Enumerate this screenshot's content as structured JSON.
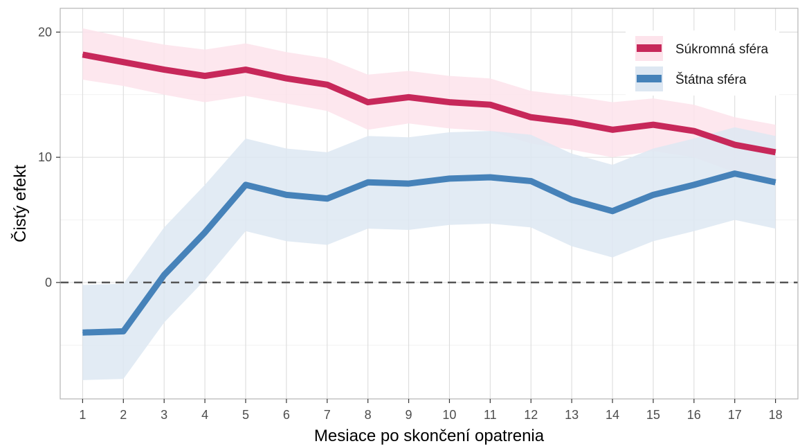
{
  "chart_data": {
    "type": "line",
    "xlabel": "Mesiace po skončení opatrenia",
    "ylabel": "Čistý efekt",
    "x": [
      1,
      2,
      3,
      4,
      5,
      6,
      7,
      8,
      9,
      10,
      11,
      12,
      13,
      14,
      15,
      16,
      17,
      18
    ],
    "xlim": [
      0.45,
      18.55
    ],
    "ylim": [
      -9.3,
      21.9
    ],
    "y_ticks": [
      0,
      10,
      20
    ],
    "grid": true,
    "reference_line": 0,
    "legend_position": "top-right",
    "series": [
      {
        "name": "Súkromná sféra",
        "color": "#C7285A",
        "band_color": "#FDE3EB",
        "values": [
          18.2,
          17.6,
          17.0,
          16.5,
          17.0,
          16.3,
          15.8,
          14.4,
          14.8,
          14.4,
          14.2,
          13.2,
          12.8,
          12.2,
          12.6,
          12.1,
          11.0,
          10.4
        ],
        "lower": [
          16.2,
          15.7,
          15.0,
          14.4,
          14.9,
          14.3,
          13.7,
          12.2,
          12.7,
          12.3,
          12.1,
          11.1,
          10.6,
          10.0,
          10.5,
          10.0,
          8.8,
          8.2
        ],
        "upper": [
          20.3,
          19.6,
          19.0,
          18.6,
          19.1,
          18.4,
          17.9,
          16.6,
          16.9,
          16.5,
          16.3,
          15.3,
          14.9,
          14.4,
          14.7,
          14.2,
          13.2,
          12.6
        ]
      },
      {
        "name": "Štátna sféra",
        "color": "#4682B9",
        "band_color": "#DDE7F2",
        "values": [
          -4.0,
          -3.9,
          0.6,
          4.0,
          7.8,
          7.0,
          6.7,
          8.0,
          7.9,
          8.3,
          8.4,
          8.1,
          6.6,
          5.7,
          7.0,
          7.8,
          8.7,
          8.0
        ],
        "lower": [
          -7.8,
          -7.7,
          -3.2,
          0.2,
          4.1,
          3.3,
          3.0,
          4.3,
          4.2,
          4.6,
          4.7,
          4.4,
          2.9,
          2.0,
          3.3,
          4.1,
          5.0,
          4.3
        ],
        "upper": [
          -0.2,
          -0.1,
          4.4,
          7.8,
          11.5,
          10.7,
          10.4,
          11.7,
          11.6,
          12.0,
          12.1,
          11.8,
          10.3,
          9.4,
          10.7,
          11.5,
          12.4,
          11.7
        ]
      }
    ]
  }
}
